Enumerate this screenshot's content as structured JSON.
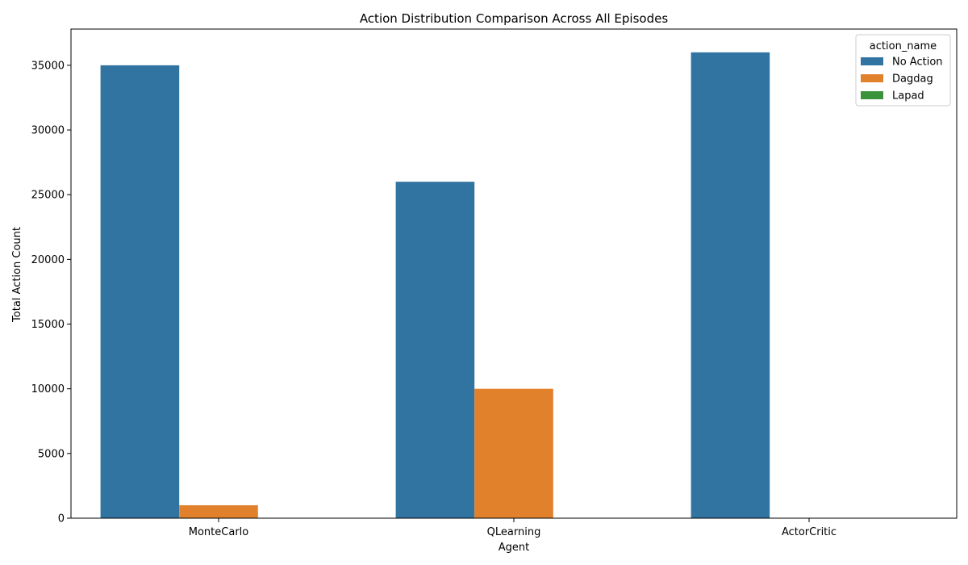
{
  "chart_data": {
    "type": "bar",
    "title": "Action Distribution Comparison Across All Episodes",
    "xlabel": "Agent",
    "ylabel": "Total Action Count",
    "categories": [
      "MonteCarlo",
      "QLearning",
      "ActorCritic"
    ],
    "series": [
      {
        "name": "No Action",
        "color": "#3274a1",
        "values": [
          35000,
          26000,
          36000
        ]
      },
      {
        "name": "Dagdag",
        "color": "#e1812c",
        "values": [
          1000,
          10000,
          0
        ]
      },
      {
        "name": "Lapad",
        "color": "#3a923a",
        "values": [
          0,
          0,
          0
        ]
      }
    ],
    "ylim": [
      0,
      37800
    ],
    "yticks": [
      0,
      5000,
      10000,
      15000,
      20000,
      25000,
      30000,
      35000
    ],
    "legend": {
      "title": "action_name",
      "placement": "top-right"
    },
    "grid": false
  }
}
